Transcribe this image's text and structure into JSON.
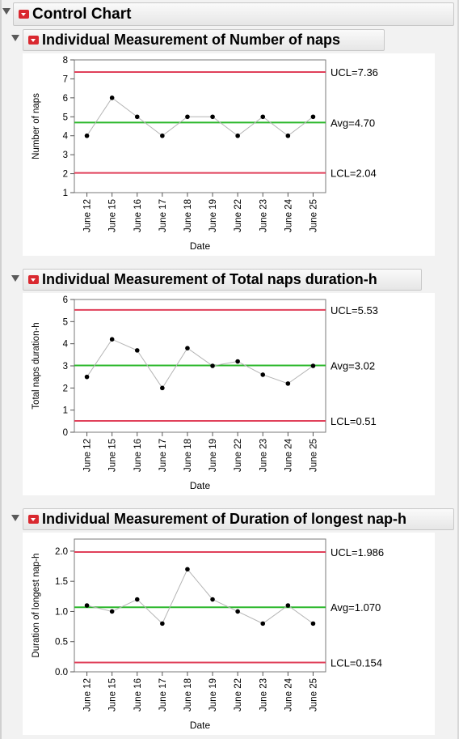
{
  "report": {
    "title": "Control Chart"
  },
  "chart_data": [
    {
      "type": "line",
      "title": "Individual Measurement of Number of naps",
      "xlabel": "Date",
      "ylabel": "Number of naps",
      "categories": [
        "June 12",
        "June 15",
        "June 16",
        "June 17",
        "June 18",
        "June 19",
        "June 22",
        "June 23",
        "June 24",
        "June 25"
      ],
      "values": [
        4,
        6,
        5,
        4,
        5,
        5,
        4,
        5,
        4,
        5
      ],
      "ylim": [
        1,
        8
      ],
      "yticks": [
        "1",
        "2",
        "3",
        "4",
        "5",
        "6",
        "7",
        "8"
      ],
      "limits": {
        "ucl": 7.36,
        "avg": 4.7,
        "lcl": 2.04
      },
      "limit_labels": {
        "ucl": "UCL=7.36",
        "avg": "Avg=4.70",
        "lcl": "LCL=2.04"
      }
    },
    {
      "type": "line",
      "title": "Individual Measurement of Total naps duration-h",
      "xlabel": "Date",
      "ylabel": "Total naps duration-h",
      "categories": [
        "June 12",
        "June 15",
        "June 16",
        "June 17",
        "June 18",
        "June 19",
        "June 22",
        "June 23",
        "June 24",
        "June 25"
      ],
      "values": [
        2.5,
        4.2,
        3.7,
        2.0,
        3.8,
        3.0,
        3.2,
        2.6,
        2.2,
        3.0
      ],
      "ylim": [
        0,
        6
      ],
      "yticks": [
        "0",
        "1",
        "2",
        "3",
        "4",
        "5",
        "6"
      ],
      "limits": {
        "ucl": 5.53,
        "avg": 3.02,
        "lcl": 0.51
      },
      "limit_labels": {
        "ucl": "UCL=5.53",
        "avg": "Avg=3.02",
        "lcl": "LCL=0.51"
      }
    },
    {
      "type": "line",
      "title": "Individual Measurement of Duration of longest nap-h",
      "xlabel": "Date",
      "ylabel": "Duration of longest nap-h",
      "categories": [
        "June 12",
        "June 15",
        "June 16",
        "June 17",
        "June 18",
        "June 19",
        "June 22",
        "June 23",
        "June 24",
        "June 25"
      ],
      "values": [
        1.1,
        1.0,
        1.2,
        0.8,
        1.7,
        1.2,
        1.0,
        0.8,
        1.1,
        0.8
      ],
      "ylim": [
        0,
        2.2
      ],
      "yticks": [
        "0.0",
        "0.5",
        "1.0",
        "1.5",
        "2.0"
      ],
      "ytick_values": [
        0,
        0.5,
        1.0,
        1.5,
        2.0
      ],
      "limits": {
        "ucl": 1.986,
        "avg": 1.07,
        "lcl": 0.154
      },
      "limit_labels": {
        "ucl": "UCL=1.986",
        "avg": "Avg=1.070",
        "lcl": "LCL=0.154"
      }
    }
  ],
  "colors": {
    "limit_line": "#e0405a",
    "center_line": "#2cb82c",
    "series_line": "#b4b4b4",
    "marker": "#000000"
  }
}
